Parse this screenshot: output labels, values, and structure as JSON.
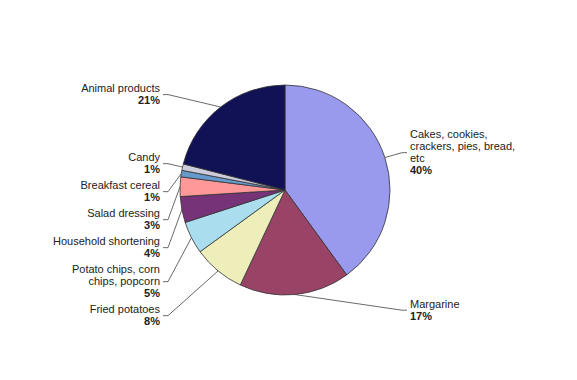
{
  "chart_data": {
    "type": "pie",
    "categories": [
      "Cakes, cookies,\ncrackers, pies, bread,\netc",
      "Margarine",
      "Fried potatoes",
      "Potato chips, corn\nchips, popcorn",
      "Household shortening",
      "Salad dressing",
      "Breakfast cereal",
      "Candy",
      "Animal products"
    ],
    "values": [
      40,
      17,
      8,
      5,
      4,
      3,
      1,
      1,
      21
    ],
    "value_labels": [
      "40%",
      "17%",
      "8%",
      "5%",
      "4%",
      "3%",
      "1%",
      "1%",
      "21%"
    ],
    "colors": [
      "#9999ee",
      "#994466",
      "#eeeebb",
      "#aaddee",
      "#773377",
      "#ff9999",
      "#6699cc",
      "#ccccdd",
      "#111155"
    ],
    "data_labels": true
  }
}
